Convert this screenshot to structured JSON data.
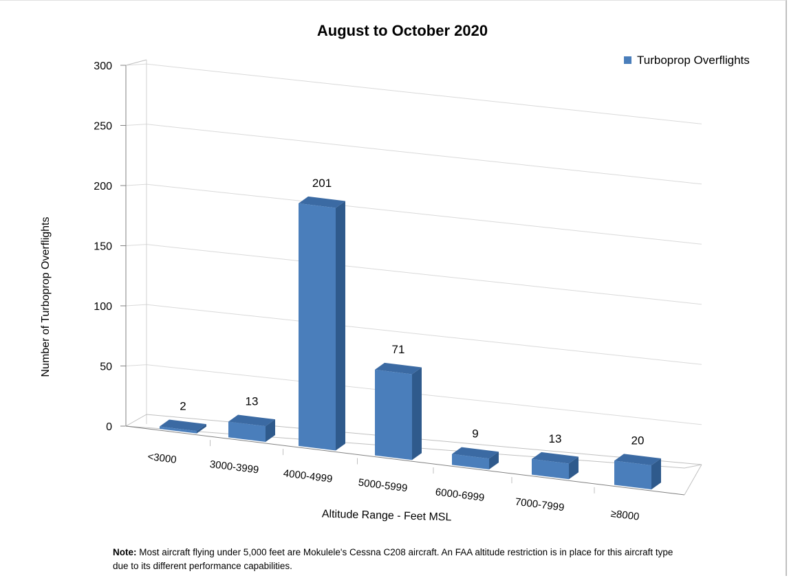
{
  "chart_data": {
    "type": "bar",
    "title": "August to October 2020",
    "xlabel": "Altitude Range - Feet MSL",
    "ylabel": "Number of Turboprop Overflights",
    "categories": [
      "<3000",
      "3000-3999",
      "4000-4999",
      "5000-5999",
      "6000-6999",
      "7000-7999",
      "≥8000"
    ],
    "series": [
      {
        "name": "Turboprop Overflights",
        "values": [
          2,
          13,
          201,
          71,
          9,
          13,
          20
        ]
      }
    ],
    "data_labels": [
      "2",
      "13",
      "201",
      "71",
      "9",
      "13",
      "20"
    ],
    "ylim": [
      0,
      300
    ],
    "yticks": [
      "0",
      "50",
      "100",
      "150",
      "200",
      "250",
      "300"
    ],
    "grid": true,
    "legend_position": "top-right",
    "style": "3d-column",
    "colors": {
      "bar_front": "#4a7ebb",
      "bar_side": "#2f5a8c",
      "bar_top": "#3b6aa3",
      "grid": "#d9d9d9"
    }
  },
  "note": {
    "label": "Note:",
    "text": " Most aircraft flying under 5,000 feet are Mokulele's Cessna C208 aircraft. An FAA altitude restriction is in place for this aircraft type due to its different performance capabilities."
  }
}
